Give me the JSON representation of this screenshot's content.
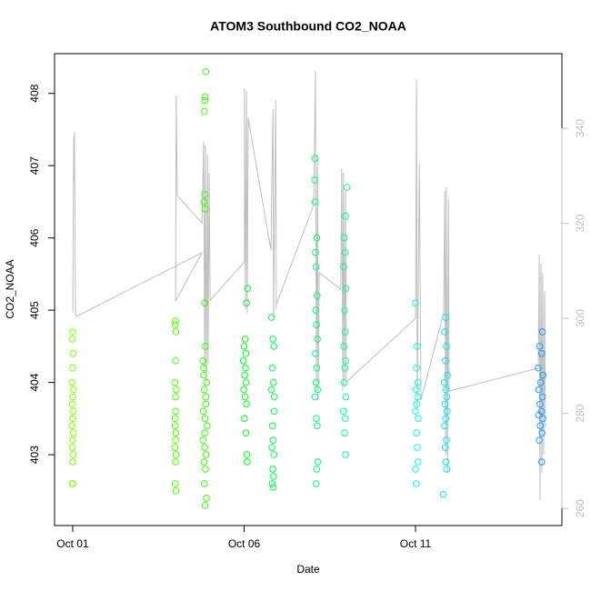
{
  "chart_data": {
    "type": "scatter",
    "title": "ATOM3 Southbound CO2_NOAA",
    "x_label": "Date",
    "y_label": "CO2_NOAA",
    "xlim": [
      0.47,
      15.27
    ],
    "xticks": [
      {
        "value": 1,
        "label": "Oct 01"
      },
      {
        "value": 6,
        "label": "Oct 06"
      },
      {
        "value": 11,
        "label": "Oct 11"
      }
    ],
    "ylim": [
      402.02,
      408.55
    ],
    "yticks": [
      403,
      404,
      405,
      406,
      407,
      408
    ],
    "y2lim": [
      256.4,
      355.7
    ],
    "y2ticks": [
      260,
      280,
      300,
      320,
      340
    ],
    "y2_color": "#bebebe",
    "series": [
      {
        "type": "line",
        "axis": "y2",
        "color": "#bebebe",
        "x": [
          1.0,
          1.03,
          1.05,
          1.05,
          1.08,
          1.11,
          4.77,
          4.0,
          4.02,
          4.05,
          4.77,
          4.82,
          4.85,
          4.87,
          4.9,
          4.93,
          4.95,
          4.98,
          5.01,
          6.01,
          6.01,
          6.04,
          6.07,
          6.09,
          6.12,
          6.78,
          6.84,
          6.86,
          6.92,
          6.94,
          6.94,
          8.03,
          8.08,
          8.11,
          8.14,
          8.16,
          8.19,
          8.82,
          8.85,
          8.88,
          8.9,
          8.93,
          8.96,
          8.98,
          11.0,
          11.03,
          11.05,
          11.11,
          11.16,
          11.82,
          11.85,
          11.88,
          11.9,
          11.93,
          11.96,
          11.98,
          14.58,
          14.61,
          14.63,
          14.66,
          14.69,
          14.71,
          14.74,
          14.77,
          14.79
        ],
        "values": [
          301.3,
          338.3,
          328.7,
          339.2,
          301,
          300.4,
          313.8,
          303.6,
          346.9,
          325.8,
          320.1,
          337.3,
          288.5,
          336.4,
          286.6,
          334.4,
          290.4,
          330.6,
          303.8,
          311.9,
          348.4,
          301.9,
          347.8,
          301,
          342.1,
          314.4,
          344,
          300,
          345.9,
          301.9,
          302.9,
          323.9,
          352.1,
          284.7,
          334.4,
          282.8,
          309.6,
          306.1,
          331.6,
          284.7,
          330.6,
          285.6,
          326.8,
          286.6,
          300,
          350.3,
          280.9,
          332.5,
          282.8,
          301,
          326.8,
          271.3,
          327.7,
          267.5,
          324.9,
          284.7,
          289.5,
          313.4,
          261.7,
          311.5,
          267.5,
          309.6,
          271.3,
          305.7,
          277
        ]
      },
      {
        "type": "scatter",
        "color": "#7fff00",
        "x": [
          1.0,
          0.99,
          1.01,
          1.0,
          0.98,
          1.02,
          1.0,
          0.99,
          1.01,
          1.0,
          0.98,
          1.02,
          1.0,
          0.99,
          1.01,
          1.0,
          0.99,
          1.0
        ],
        "values": [
          404.7,
          404.6,
          404.4,
          404.2,
          404.0,
          403.9,
          403.8,
          403.7,
          403.6,
          403.5,
          403.4,
          403.3,
          403.2,
          403.1,
          403.0,
          402.9,
          402.6,
          402.6
        ]
      },
      {
        "type": "scatter",
        "color": "#4cff00",
        "x": [
          4.0,
          3.99,
          4.01,
          4.0,
          3.98,
          4.02,
          4.0,
          3.99,
          4.01,
          4.0,
          3.98,
          4.02,
          4.0,
          3.99,
          4.01,
          4.0,
          3.99
        ],
        "values": [
          404.85,
          404.8,
          404.7,
          404.3,
          404.0,
          403.9,
          403.6,
          403.5,
          403.3,
          403.2,
          403.1,
          403.0,
          402.9,
          402.6,
          402.5,
          403.8,
          403.4
        ]
      },
      {
        "type": "scatter",
        "color": "#33ff00",
        "x": [
          4.88,
          4.86,
          4.85,
          4.84,
          4.85,
          4.83,
          4.86,
          4.85,
          4.87,
          4.8,
          4.82,
          4.9,
          4.84,
          4.88,
          4.81,
          4.86,
          4.92,
          4.8,
          4.85,
          4.89,
          4.83,
          4.87,
          4.84,
          4.9,
          4.86,
          4.82,
          4.88,
          4.85
        ],
        "values": [
          408.3,
          407.95,
          407.9,
          407.75,
          406.6,
          406.5,
          406.4,
          405.1,
          404.5,
          404.3,
          404.2,
          404.0,
          403.9,
          403.8,
          403.6,
          403.5,
          403.4,
          403.2,
          403.1,
          403.0,
          402.9,
          402.8,
          402.6,
          402.4,
          402.3,
          404.1,
          403.7,
          403.3
        ]
      },
      {
        "type": "scatter",
        "color": "#00ff1a",
        "x": [
          6.1,
          6.07,
          6.03,
          6.0,
          6.05,
          5.98,
          6.04,
          6.02,
          6.06,
          5.99,
          6.03,
          6.07,
          6.01,
          6.05,
          6.08,
          6.09
        ],
        "values": [
          405.3,
          405.1,
          404.6,
          404.5,
          404.4,
          404.3,
          404.2,
          404.1,
          404.0,
          403.9,
          403.8,
          403.7,
          403.5,
          403.3,
          403.0,
          402.9
        ]
      },
      {
        "type": "scatter",
        "color": "#00ff40",
        "x": [
          6.8,
          6.84,
          6.87,
          6.82,
          6.86,
          6.8,
          6.88,
          6.83,
          6.85,
          6.81,
          6.87,
          6.84,
          6.86,
          6.82,
          6.85,
          6.88
        ],
        "values": [
          404.9,
          404.6,
          404.5,
          404.2,
          404.0,
          403.9,
          403.6,
          403.4,
          403.2,
          403.1,
          403.0,
          402.8,
          402.7,
          402.6,
          402.55,
          403.8
        ]
      },
      {
        "type": "scatter",
        "color": "#00ff73",
        "x": [
          8.07,
          8.06,
          8.07,
          8.12,
          8.08,
          8.1,
          8.13,
          8.09,
          8.11,
          8.14,
          8.08,
          8.12,
          8.1,
          8.15,
          8.07,
          8.11,
          8.13,
          8.15,
          8.1,
          8.12
        ],
        "values": [
          407.1,
          406.8,
          406.5,
          406.0,
          405.8,
          405.6,
          405.2,
          405.0,
          404.8,
          404.6,
          404.4,
          404.2,
          404.0,
          403.9,
          403.8,
          403.5,
          403.4,
          402.9,
          402.6,
          402.8
        ]
      },
      {
        "type": "scatter",
        "color": "#00ffa0",
        "x": [
          9.0,
          8.96,
          8.92,
          8.95,
          8.9,
          8.97,
          8.93,
          8.95,
          8.91,
          8.96,
          8.94,
          8.92,
          8.97,
          8.9,
          8.95,
          8.93,
          8.96
        ],
        "values": [
          406.7,
          406.3,
          406.0,
          405.8,
          405.6,
          405.3,
          405.0,
          404.7,
          404.5,
          404.3,
          404.2,
          404.0,
          403.8,
          403.6,
          403.5,
          403.3,
          403.0
        ]
      },
      {
        "type": "scatter",
        "color": "#00ffe6",
        "x": [
          11.0,
          11.05,
          11.03,
          11.07,
          11.02,
          11.06,
          11.04,
          11.0,
          11.08,
          11.03,
          11.05,
          11.07,
          11.0,
          11.02
        ],
        "values": [
          405.1,
          404.5,
          404.2,
          404.0,
          403.9,
          403.8,
          403.7,
          403.6,
          403.5,
          403.3,
          403.1,
          402.9,
          402.8,
          402.6
        ]
      },
      {
        "type": "scatter",
        "color": "#00e6ff",
        "x": [
          11.88,
          11.85,
          11.9,
          11.87,
          11.93,
          11.84,
          11.89,
          11.91,
          11.86,
          11.92,
          11.88,
          11.85,
          11.9,
          11.87,
          11.89,
          11.91,
          11.81
        ],
        "values": [
          404.9,
          404.7,
          404.5,
          404.3,
          404.1,
          404.0,
          403.9,
          403.8,
          403.7,
          403.6,
          403.5,
          403.4,
          403.2,
          403.1,
          402.9,
          402.8,
          402.45
        ]
      },
      {
        "type": "scatter",
        "color": "#1a9cff",
        "x": [
          14.7,
          14.62,
          14.68,
          14.58,
          14.72,
          14.65,
          14.6,
          14.7,
          14.63,
          14.67,
          14.59,
          14.71,
          14.64,
          14.69,
          14.61,
          14.68
        ],
        "values": [
          404.7,
          404.5,
          404.4,
          404.2,
          404.1,
          404.0,
          403.9,
          403.8,
          403.7,
          403.6,
          403.55,
          403.5,
          403.4,
          403.3,
          403.2,
          402.9
        ]
      }
    ]
  }
}
